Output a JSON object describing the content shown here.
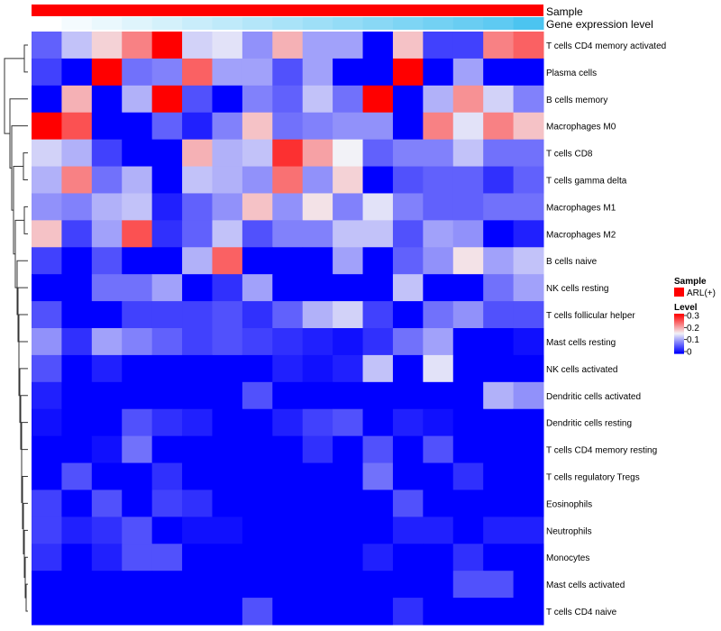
{
  "chart_data": {
    "type": "heatmap",
    "annotation_tracks": [
      {
        "name": "Sample",
        "label": "Sample"
      },
      {
        "name": "Gene expression level",
        "label": "Gene expression level"
      }
    ],
    "gene_expression_level": [
      0.0,
      0.06,
      0.12,
      0.18,
      0.24,
      0.3,
      0.36,
      0.42,
      0.48,
      0.54,
      0.6,
      0.66,
      0.72,
      0.78,
      0.84,
      0.9,
      1.0
    ],
    "rows": [
      "T cells CD4 memory activated",
      "Plasma cells",
      "B cells memory",
      "Macrophages M0",
      "T cells CD8",
      "T cells gamma delta",
      "Macrophages M1",
      "Macrophages M2",
      "B cells naive",
      "NK cells resting",
      "T cells follicular helper",
      "Mast cells resting",
      "NK cells activated",
      "Dendritic cells activated",
      "Dendritic cells resting",
      "T cells CD4 memory resting",
      "T cells regulatory  Tregs",
      "Eosinophils",
      "Neutrophils",
      "Monocytes",
      "Mast cells activated",
      "T cells CD4 naive"
    ],
    "values": [
      [
        0.06,
        0.12,
        0.17,
        0.22,
        0.3,
        0.13,
        0.14,
        0.09,
        0.19,
        0.1,
        0.1,
        0.0,
        0.18,
        0.04,
        0.04,
        0.22,
        0.24
      ],
      [
        0.04,
        0.0,
        0.3,
        0.07,
        0.08,
        0.24,
        0.1,
        0.1,
        0.05,
        0.1,
        0.0,
        0.0,
        0.3,
        0.0,
        0.1,
        0.0,
        0.0
      ],
      [
        0.0,
        0.19,
        0.0,
        0.11,
        0.3,
        0.05,
        0.0,
        0.08,
        0.06,
        0.12,
        0.07,
        0.3,
        0.0,
        0.11,
        0.21,
        0.13,
        0.08
      ],
      [
        0.3,
        0.25,
        0.0,
        0.0,
        0.06,
        0.02,
        0.08,
        0.18,
        0.07,
        0.08,
        0.09,
        0.09,
        0.0,
        0.22,
        0.14,
        0.22,
        0.18
      ],
      [
        0.13,
        0.11,
        0.04,
        0.0,
        0.0,
        0.19,
        0.11,
        0.12,
        0.27,
        0.2,
        0.15,
        0.06,
        0.08,
        0.08,
        0.12,
        0.07,
        0.07
      ],
      [
        0.11,
        0.22,
        0.07,
        0.11,
        0.0,
        0.12,
        0.11,
        0.09,
        0.23,
        0.09,
        0.17,
        0.0,
        0.05,
        0.06,
        0.06,
        0.03,
        0.06
      ],
      [
        0.09,
        0.08,
        0.11,
        0.12,
        0.02,
        0.06,
        0.09,
        0.18,
        0.09,
        0.16,
        0.08,
        0.14,
        0.08,
        0.06,
        0.06,
        0.07,
        0.07
      ],
      [
        0.18,
        0.04,
        0.1,
        0.25,
        0.03,
        0.06,
        0.12,
        0.05,
        0.08,
        0.08,
        0.12,
        0.12,
        0.05,
        0.1,
        0.09,
        0.0,
        0.02
      ],
      [
        0.04,
        0.0,
        0.05,
        0.0,
        0.0,
        0.11,
        0.24,
        0.0,
        0.0,
        0.0,
        0.1,
        0.0,
        0.06,
        0.09,
        0.16,
        0.1,
        0.12
      ],
      [
        0.0,
        0.0,
        0.07,
        0.07,
        0.1,
        0.0,
        0.03,
        0.1,
        0.0,
        0.0,
        0.0,
        0.0,
        0.12,
        0.0,
        0.0,
        0.07,
        0.1
      ],
      [
        0.05,
        0.0,
        0.0,
        0.04,
        0.04,
        0.04,
        0.05,
        0.03,
        0.06,
        0.11,
        0.13,
        0.04,
        0.0,
        0.07,
        0.09,
        0.05,
        0.05
      ],
      [
        0.09,
        0.03,
        0.1,
        0.08,
        0.06,
        0.04,
        0.05,
        0.04,
        0.03,
        0.02,
        0.01,
        0.03,
        0.07,
        0.1,
        0.0,
        0.0,
        0.01
      ],
      [
        0.05,
        0.0,
        0.02,
        0.0,
        0.0,
        0.0,
        0.0,
        0.0,
        0.02,
        0.01,
        0.02,
        0.12,
        0.0,
        0.14,
        0.0,
        0.0,
        0.0
      ],
      [
        0.02,
        0.0,
        0.0,
        0.0,
        0.0,
        0.0,
        0.0,
        0.05,
        0.0,
        0.0,
        0.0,
        0.0,
        0.0,
        0.0,
        0.0,
        0.11,
        0.09
      ],
      [
        0.01,
        0.0,
        0.0,
        0.05,
        0.03,
        0.02,
        0.0,
        0.0,
        0.02,
        0.04,
        0.05,
        0.0,
        0.02,
        0.01,
        0.0,
        0.0,
        0.0
      ],
      [
        0.0,
        0.0,
        0.01,
        0.07,
        0.0,
        0.0,
        0.0,
        0.0,
        0.0,
        0.03,
        0.0,
        0.05,
        0.0,
        0.05,
        0.0,
        0.0,
        0.0
      ],
      [
        0.0,
        0.05,
        0.0,
        0.0,
        0.03,
        0.0,
        0.0,
        0.0,
        0.0,
        0.0,
        0.0,
        0.07,
        0.0,
        0.0,
        0.03,
        0.0,
        0.0
      ],
      [
        0.04,
        0.0,
        0.05,
        0.0,
        0.04,
        0.03,
        0.0,
        0.0,
        0.0,
        0.0,
        0.0,
        0.0,
        0.05,
        0.0,
        0.0,
        0.0,
        0.0
      ],
      [
        0.04,
        0.02,
        0.03,
        0.05,
        0.0,
        0.01,
        0.01,
        0.0,
        0.0,
        0.0,
        0.0,
        0.0,
        0.02,
        0.02,
        0.0,
        0.02,
        0.02
      ],
      [
        0.03,
        0.0,
        0.02,
        0.05,
        0.05,
        0.0,
        0.0,
        0.0,
        0.0,
        0.0,
        0.0,
        0.02,
        0.0,
        0.0,
        0.03,
        0.0,
        0.0
      ],
      [
        0.0,
        0.0,
        0.0,
        0.0,
        0.0,
        0.0,
        0.0,
        0.0,
        0.0,
        0.0,
        0.0,
        0.0,
        0.0,
        0.0,
        0.05,
        0.05,
        0.0
      ],
      [
        0.0,
        0.0,
        0.0,
        0.0,
        0.0,
        0.0,
        0.0,
        0.05,
        0.0,
        0.0,
        0.0,
        0.0,
        0.03,
        0.0,
        0.0,
        0.0,
        0.0
      ]
    ],
    "color_scale": {
      "low": "#0000ff",
      "mid": "#f2f2f7",
      "high": "#ff0000",
      "min": 0,
      "mid_value": 0.15,
      "max": 0.3
    },
    "legend": {
      "sample": {
        "title": "Sample",
        "entries": [
          {
            "label": "ARL(+)",
            "color": "#ff0000"
          }
        ]
      },
      "level": {
        "title": "Level",
        "ticks": [
          "0.3",
          "0.2",
          "0.1",
          "0"
        ]
      },
      "placement": "right"
    },
    "dendrogram": "rows"
  }
}
